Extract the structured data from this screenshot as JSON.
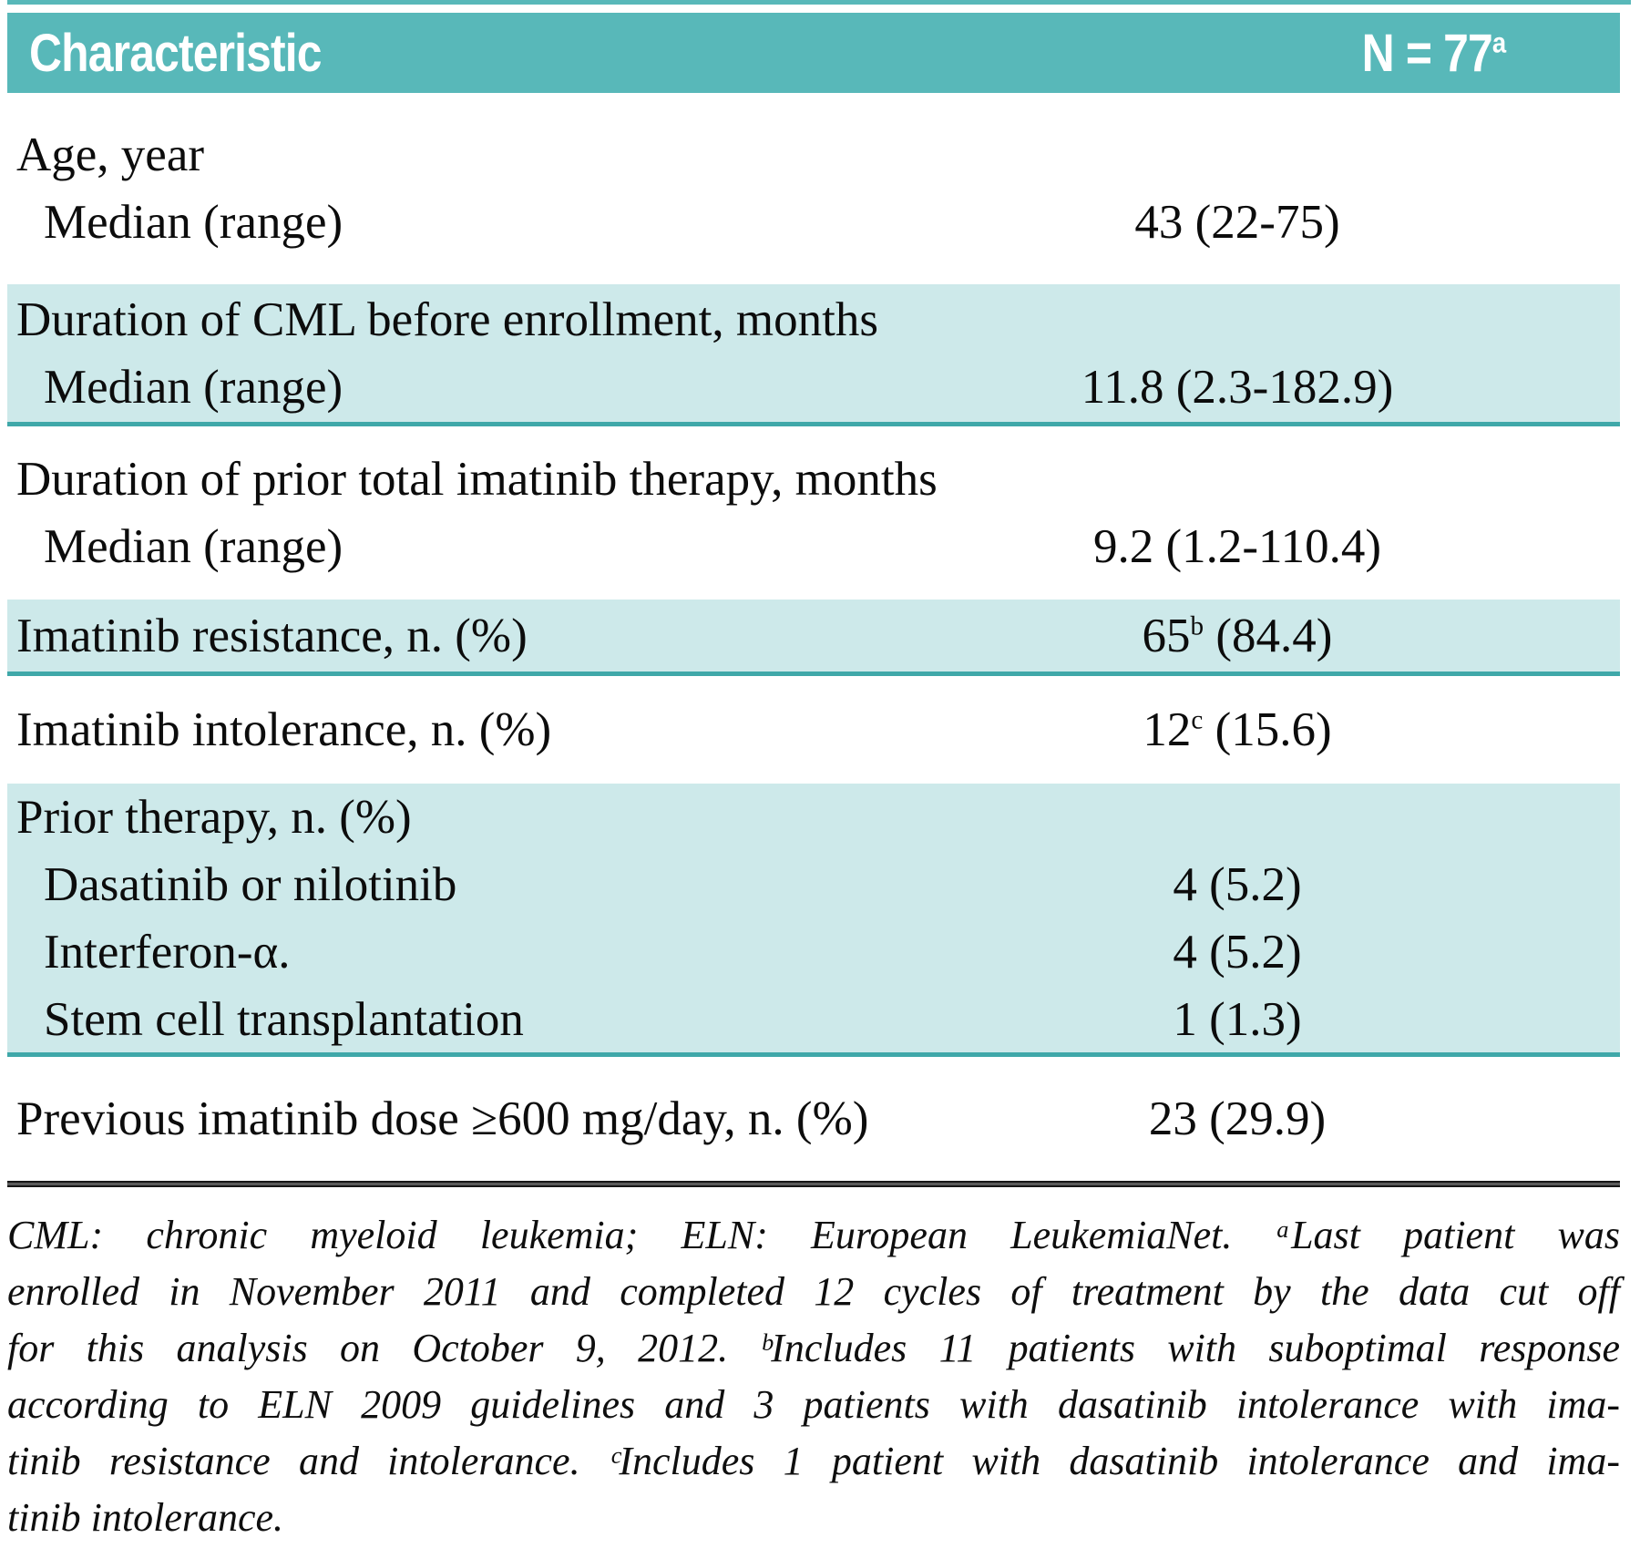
{
  "colors": {
    "header_teal": "#58b8b9",
    "row_teal": "#cde9ea",
    "divider_teal": "#3fa8a9",
    "rule_dark": "#1c1c1c",
    "text_dark": "#0c0c0c"
  },
  "table": {
    "header": {
      "characteristic_label": "Characteristic",
      "n_label": "N = 77",
      "n_sup": "a"
    },
    "sections": [
      {
        "rows": [
          {
            "label": "Age, year",
            "value": ""
          },
          {
            "label": "Median (range)",
            "indent": true,
            "value": "43 (22-75)"
          }
        ]
      },
      {
        "rows": [
          {
            "label": "Duration of CML before enrollment, months",
            "value": ""
          },
          {
            "label": "Median (range)",
            "indent": true,
            "value": "11.8 (2.3-182.9)"
          }
        ]
      },
      {
        "rows": [
          {
            "label": "Duration of prior total imatinib therapy, months",
            "value": ""
          },
          {
            "label": "Median (range)",
            "indent": true,
            "value": "9.2 (1.2-110.4)"
          }
        ]
      },
      {
        "rows": [
          {
            "label": "Imatinib resistance, n. (%)",
            "value_base": "65",
            "value_sup": "b",
            "value_rest": " (84.4)"
          }
        ]
      },
      {
        "rows": [
          {
            "label": "Imatinib intolerance, n. (%)",
            "value_base": "12",
            "value_sup": "c",
            "value_rest": " (15.6)"
          }
        ]
      },
      {
        "rows": [
          {
            "label": "Prior therapy, n. (%)",
            "value": ""
          },
          {
            "label": "Dasatinib or nilotinib",
            "indent": true,
            "value": "4 (5.2)"
          },
          {
            "label": "Interferon-α.",
            "indent": true,
            "value": "4 (5.2)"
          },
          {
            "label": "Stem cell transplantation",
            "indent": true,
            "value": "1 (1.3)"
          }
        ]
      },
      {
        "rows": [
          {
            "label": "Previous imatinib dose ≥600 mg/day, n. (%)",
            "value": "23 (29.9)"
          }
        ]
      }
    ]
  },
  "footnote": {
    "lines": [
      "CML: chronic myeloid leukemia; ELN: European LeukemiaNet. ᵃLast patient was",
      "enrolled in November 2011 and completed 12 cycles of treatment by the data cut off",
      "for this analysis on October 9, 2012. ᵇIncludes 11 patients with suboptimal response",
      "according to ELN 2009 guidelines and 3 patients with dasatinib intolerance with ima-",
      "tinib resistance and intolerance. ᶜIncludes 1 patient with dasatinib intolerance and ima-",
      "tinib intolerance."
    ]
  }
}
